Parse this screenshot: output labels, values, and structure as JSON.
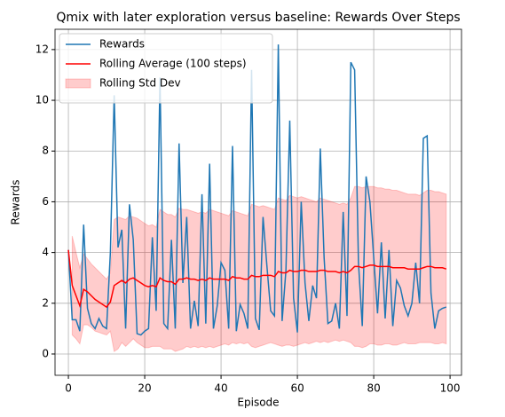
{
  "chart_data": {
    "type": "line",
    "title": "Qmix with later exploration versus baseline: Rewards Over Steps",
    "xlabel": "Episode",
    "ylabel": "Rewards",
    "x": [
      0,
      1,
      2,
      3,
      4,
      5,
      6,
      7,
      8,
      9,
      10,
      11,
      12,
      13,
      14,
      15,
      16,
      17,
      18,
      19,
      20,
      21,
      22,
      23,
      24,
      25,
      26,
      27,
      28,
      29,
      30,
      31,
      32,
      33,
      34,
      35,
      36,
      37,
      38,
      39,
      40,
      41,
      42,
      43,
      44,
      45,
      46,
      47,
      48,
      49,
      50,
      51,
      52,
      53,
      54,
      55,
      56,
      57,
      58,
      59,
      60,
      61,
      62,
      63,
      64,
      65,
      66,
      67,
      68,
      69,
      70,
      71,
      72,
      73,
      74,
      75,
      76,
      77,
      78,
      79,
      80,
      81,
      82,
      83,
      84,
      85,
      86,
      87,
      88,
      89,
      90,
      91,
      92,
      93,
      94,
      95,
      96,
      97,
      98,
      99
    ],
    "series": [
      {
        "name": "Rewards",
        "color": "#1f77b4",
        "values": [
          4.1,
          1.35,
          1.35,
          0.9,
          5.1,
          1.8,
          1.2,
          1.0,
          1.4,
          1.1,
          1.0,
          4.0,
          10.2,
          4.2,
          4.9,
          1.0,
          5.9,
          4.5,
          0.8,
          0.75,
          0.9,
          1.0,
          4.6,
          1.7,
          10.9,
          1.2,
          1.0,
          4.5,
          1.0,
          8.3,
          2.8,
          5.4,
          1.0,
          2.1,
          1.1,
          6.3,
          1.2,
          7.5,
          1.0,
          1.9,
          3.6,
          3.3,
          1.0,
          8.2,
          0.9,
          1.95,
          1.6,
          1.0,
          11.2,
          1.4,
          0.95,
          5.4,
          3.5,
          1.7,
          1.5,
          12.2,
          1.3,
          3.3,
          9.2,
          2.2,
          0.85,
          6.0,
          2.8,
          1.3,
          2.7,
          2.2,
          8.1,
          3.8,
          1.2,
          1.3,
          2.0,
          1.0,
          5.6,
          1.5,
          11.5,
          11.2,
          3.6,
          1.1,
          7.0,
          6.0,
          3.8,
          1.6,
          4.4,
          1.4,
          4.1,
          1.1,
          2.9,
          2.6,
          1.9,
          1.5,
          2.0,
          3.6,
          2.0,
          8.5,
          8.6,
          2.4,
          1.0,
          1.7,
          1.8,
          1.85
        ]
      },
      {
        "name": "Rolling Average (100 steps)",
        "color": "#ff0000",
        "values": [
          4.1,
          2.7,
          2.3,
          1.9,
          2.55,
          2.45,
          2.3,
          2.15,
          2.05,
          1.95,
          1.85,
          2.05,
          2.7,
          2.8,
          2.9,
          2.8,
          2.95,
          3.0,
          2.9,
          2.8,
          2.7,
          2.65,
          2.7,
          2.65,
          3.0,
          2.9,
          2.85,
          2.85,
          2.75,
          2.95,
          2.95,
          3.0,
          2.95,
          2.95,
          2.9,
          2.95,
          2.9,
          3.0,
          2.95,
          2.95,
          2.95,
          2.95,
          2.9,
          3.05,
          3.0,
          3.0,
          2.95,
          2.95,
          3.1,
          3.05,
          3.05,
          3.1,
          3.1,
          3.1,
          3.05,
          3.25,
          3.2,
          3.2,
          3.3,
          3.25,
          3.25,
          3.3,
          3.3,
          3.25,
          3.25,
          3.25,
          3.3,
          3.3,
          3.25,
          3.25,
          3.25,
          3.2,
          3.25,
          3.2,
          3.3,
          3.45,
          3.45,
          3.4,
          3.45,
          3.5,
          3.5,
          3.45,
          3.45,
          3.45,
          3.45,
          3.4,
          3.4,
          3.4,
          3.4,
          3.35,
          3.35,
          3.35,
          3.35,
          3.4,
          3.45,
          3.45,
          3.4,
          3.4,
          3.4,
          3.35
        ]
      }
    ],
    "band": {
      "name": "Rolling Std Dev",
      "color": "#ff0000",
      "upper": [
        null,
        4.65,
        4.0,
        3.4,
        3.95,
        3.75,
        3.55,
        3.4,
        3.25,
        3.1,
        2.95,
        3.2,
        5.3,
        5.4,
        5.35,
        5.3,
        5.45,
        5.4,
        5.35,
        5.25,
        5.15,
        5.05,
        5.1,
        5.0,
        5.7,
        5.6,
        5.5,
        5.5,
        5.4,
        5.75,
        5.7,
        5.7,
        5.65,
        5.6,
        5.55,
        5.6,
        5.55,
        5.7,
        5.65,
        5.6,
        5.55,
        5.5,
        5.45,
        5.65,
        5.6,
        5.55,
        5.5,
        5.45,
        5.9,
        5.85,
        5.8,
        5.85,
        5.8,
        5.75,
        5.7,
        6.15,
        6.1,
        6.05,
        6.25,
        6.2,
        6.15,
        6.2,
        6.15,
        6.1,
        6.05,
        6.0,
        6.15,
        6.1,
        6.05,
        6.0,
        5.95,
        5.9,
        5.95,
        5.9,
        6.15,
        6.6,
        6.6,
        6.55,
        6.6,
        6.6,
        6.6,
        6.55,
        6.55,
        6.5,
        6.5,
        6.45,
        6.45,
        6.4,
        6.35,
        6.3,
        6.3,
        6.3,
        6.25,
        6.35,
        6.45,
        6.45,
        6.4,
        6.4,
        6.35,
        6.3
      ],
      "lower": [
        null,
        0.75,
        0.6,
        0.4,
        1.15,
        1.15,
        1.05,
        0.9,
        0.85,
        0.8,
        0.75,
        0.9,
        0.1,
        0.2,
        0.45,
        0.3,
        0.45,
        0.6,
        0.45,
        0.35,
        0.25,
        0.25,
        0.3,
        0.3,
        0.3,
        0.2,
        0.2,
        0.2,
        0.1,
        0.15,
        0.2,
        0.3,
        0.25,
        0.3,
        0.25,
        0.3,
        0.25,
        0.3,
        0.25,
        0.3,
        0.35,
        0.4,
        0.35,
        0.45,
        0.4,
        0.45,
        0.4,
        0.45,
        0.3,
        0.25,
        0.3,
        0.35,
        0.4,
        0.45,
        0.4,
        0.35,
        0.3,
        0.35,
        0.35,
        0.3,
        0.35,
        0.4,
        0.45,
        0.4,
        0.45,
        0.5,
        0.45,
        0.5,
        0.45,
        0.5,
        0.55,
        0.5,
        0.55,
        0.5,
        0.45,
        0.3,
        0.3,
        0.25,
        0.3,
        0.4,
        0.4,
        0.35,
        0.35,
        0.4,
        0.4,
        0.35,
        0.35,
        0.4,
        0.45,
        0.4,
        0.4,
        0.4,
        0.45,
        0.45,
        0.45,
        0.45,
        0.4,
        0.4,
        0.45,
        0.4
      ]
    },
    "xlim": [
      -3.5,
      103
    ],
    "ylim": [
      -0.84,
      12.8
    ],
    "xticks": [
      0,
      20,
      40,
      60,
      80,
      100
    ],
    "yticks": [
      0,
      2,
      4,
      6,
      8,
      10,
      12
    ],
    "grid": true,
    "legend": "upper-left"
  }
}
